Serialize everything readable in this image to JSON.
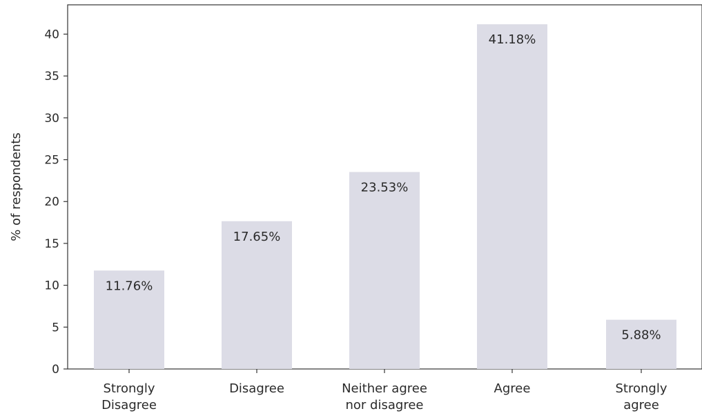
{
  "chart_data": {
    "type": "bar",
    "title": "",
    "xlabel": "",
    "ylabel": "% of respondents",
    "categories": [
      [
        "Strongly",
        "Disagree"
      ],
      [
        "Disagree"
      ],
      [
        "Neither agree",
        "nor disagree"
      ],
      [
        "Agree"
      ],
      [
        "Strongly",
        "agree"
      ]
    ],
    "values": [
      11.76,
      17.65,
      23.53,
      41.18,
      5.88
    ],
    "data_labels": [
      "11.76%",
      "17.65%",
      "23.53%",
      "41.18%",
      "5.88%"
    ],
    "ylim": [
      0,
      43.5
    ],
    "yticks": [
      0,
      5,
      10,
      15,
      20,
      25,
      30,
      35,
      40
    ],
    "grid": false,
    "bar_color": "#dcdce6",
    "axis_color": "#333333"
  }
}
